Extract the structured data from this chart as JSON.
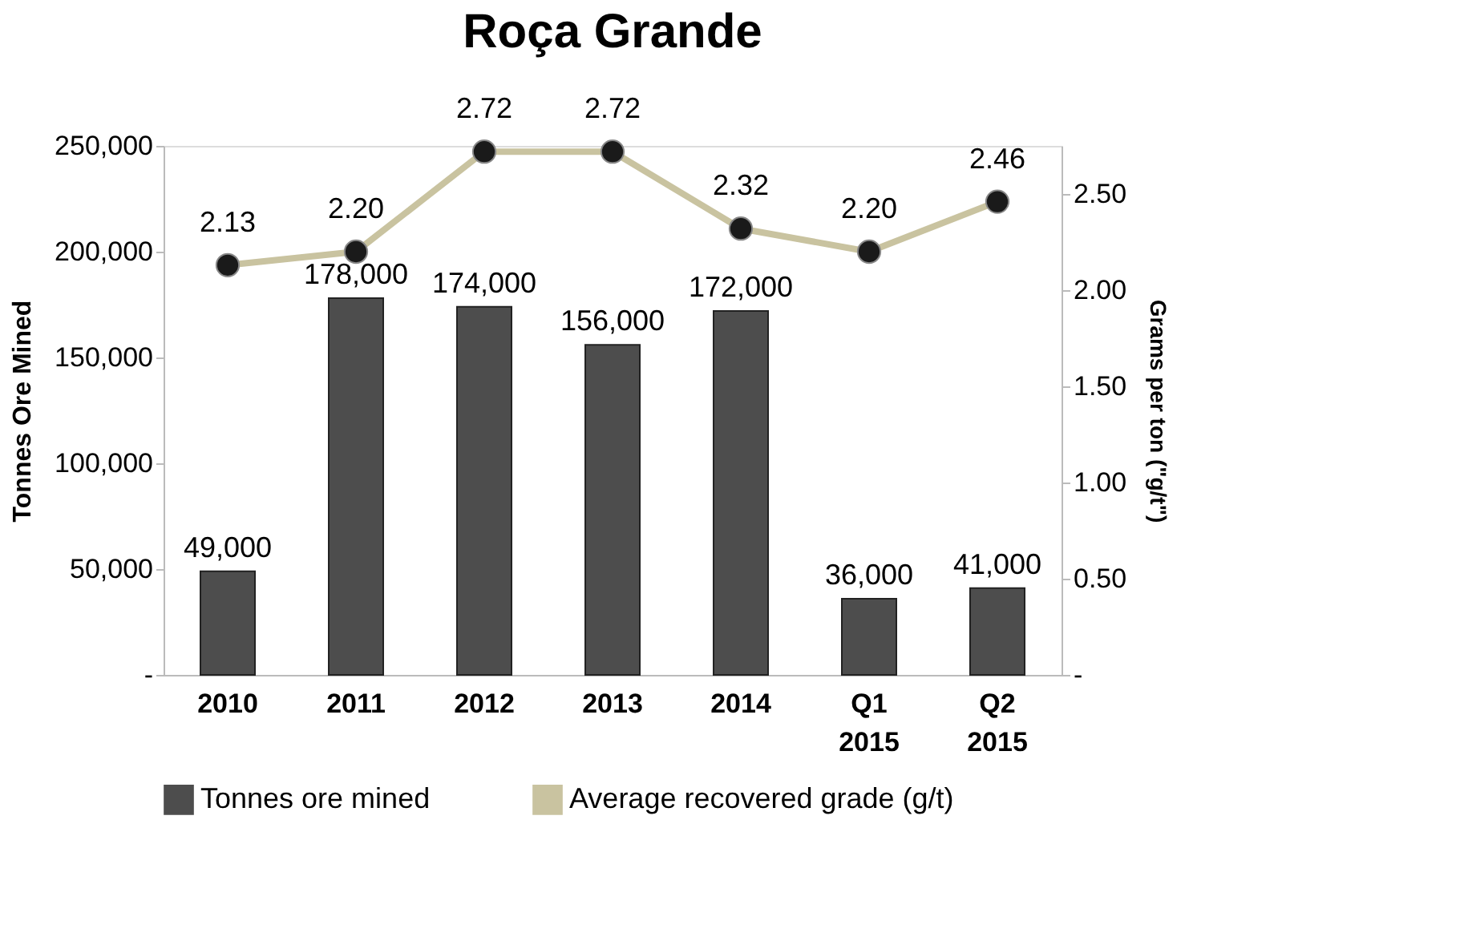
{
  "chart_data": {
    "type": "bar",
    "title": "Roça Grande",
    "categories": [
      "2010",
      "2011",
      "2012",
      "2013",
      "2014",
      "Q1 2015",
      "Q2 2015"
    ],
    "series": [
      {
        "name": "Tonnes ore mined",
        "color": "#4d4d4d",
        "values": [
          49000,
          178000,
          174000,
          156000,
          172000,
          36000,
          41000
        ],
        "value_labels": [
          "49,000",
          "178,000",
          "174,000",
          "156,000",
          "172,000",
          "36,000",
          "41,000"
        ]
      },
      {
        "name": "Average recovered grade (g/t)",
        "type": "line",
        "axis": "y2",
        "color": "#c9c3a0",
        "marker": "circle",
        "line_style": "solid",
        "values": [
          2.13,
          2.2,
          2.72,
          2.72,
          2.32,
          2.2,
          2.46
        ],
        "value_labels": [
          "2.13",
          "2.20",
          "2.72",
          "2.72",
          "2.32",
          "2.20",
          "2.46"
        ]
      }
    ],
    "ylabel": "Tonnes Ore Mined",
    "y2label": "Grams per ton (\"g/t\")",
    "ylim": [
      0,
      250000
    ],
    "yticks": [
      {
        "value": 0,
        "label": "-"
      },
      {
        "value": 50000,
        "label": "50,000"
      },
      {
        "value": 100000,
        "label": "100,000"
      },
      {
        "value": 150000,
        "label": "150,000"
      },
      {
        "value": 200000,
        "label": "200,000"
      },
      {
        "value": 250000,
        "label": "250,000"
      }
    ],
    "y2lim": [
      0,
      2.75
    ],
    "y2ticks": [
      {
        "value": 0,
        "label": "-"
      },
      {
        "value": 0.5,
        "label": "0.50"
      },
      {
        "value": 1.0,
        "label": "1.00"
      },
      {
        "value": 1.5,
        "label": "1.50"
      },
      {
        "value": 2.0,
        "label": "2.00"
      },
      {
        "value": 2.5,
        "label": "2.50"
      }
    ],
    "grid": false,
    "legend": "bottom"
  }
}
